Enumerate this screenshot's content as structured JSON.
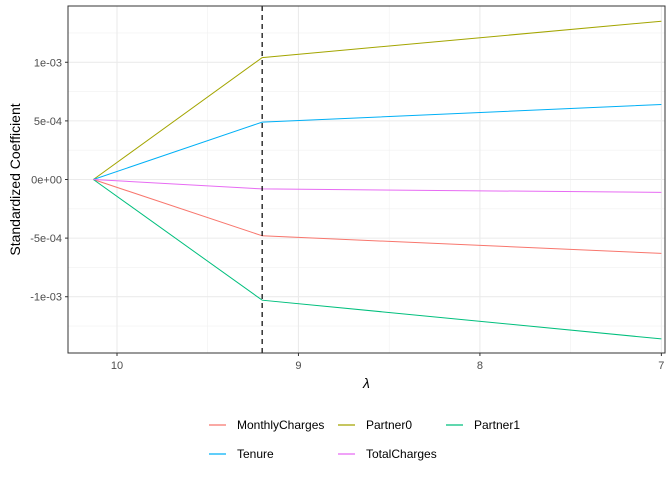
{
  "chart_data": {
    "type": "line",
    "title": "",
    "xlabel": "λ",
    "ylabel": "Standardized Coefficient",
    "x_reversed": true,
    "x_ticks": [
      10,
      9,
      8,
      7
    ],
    "x_tick_labels": [
      "10",
      "9",
      "8",
      "7"
    ],
    "xlim": [
      10.27,
      6.98
    ],
    "y_ticks": [
      -0.001,
      -0.0005,
      0,
      0.0005,
      0.001
    ],
    "y_tick_labels": [
      "-1e-03",
      "-5e-04",
      "0e+00",
      "5e-04",
      "1e-03"
    ],
    "ylim": [
      -0.00148,
      0.00148
    ],
    "x": [
      10.13,
      9.2,
      7
    ],
    "vline": 9.2,
    "grid": true,
    "legend_position": "bottom",
    "series": [
      {
        "name": "MonthlyCharges",
        "color": "#F8766D",
        "values": [
          0,
          -0.00048,
          -0.00063
        ]
      },
      {
        "name": "Partner0",
        "color": "#A3A500",
        "values": [
          0,
          0.00104,
          0.00135
        ]
      },
      {
        "name": "Partner1",
        "color": "#00BF7D",
        "values": [
          0,
          -0.00103,
          -0.00136
        ]
      },
      {
        "name": "Tenure",
        "color": "#00B0F6",
        "values": [
          0,
          0.00049,
          0.00064
        ]
      },
      {
        "name": "TotalCharges",
        "color": "#E76BF3",
        "values": [
          0,
          -8e-05,
          -0.00011
        ]
      }
    ]
  }
}
